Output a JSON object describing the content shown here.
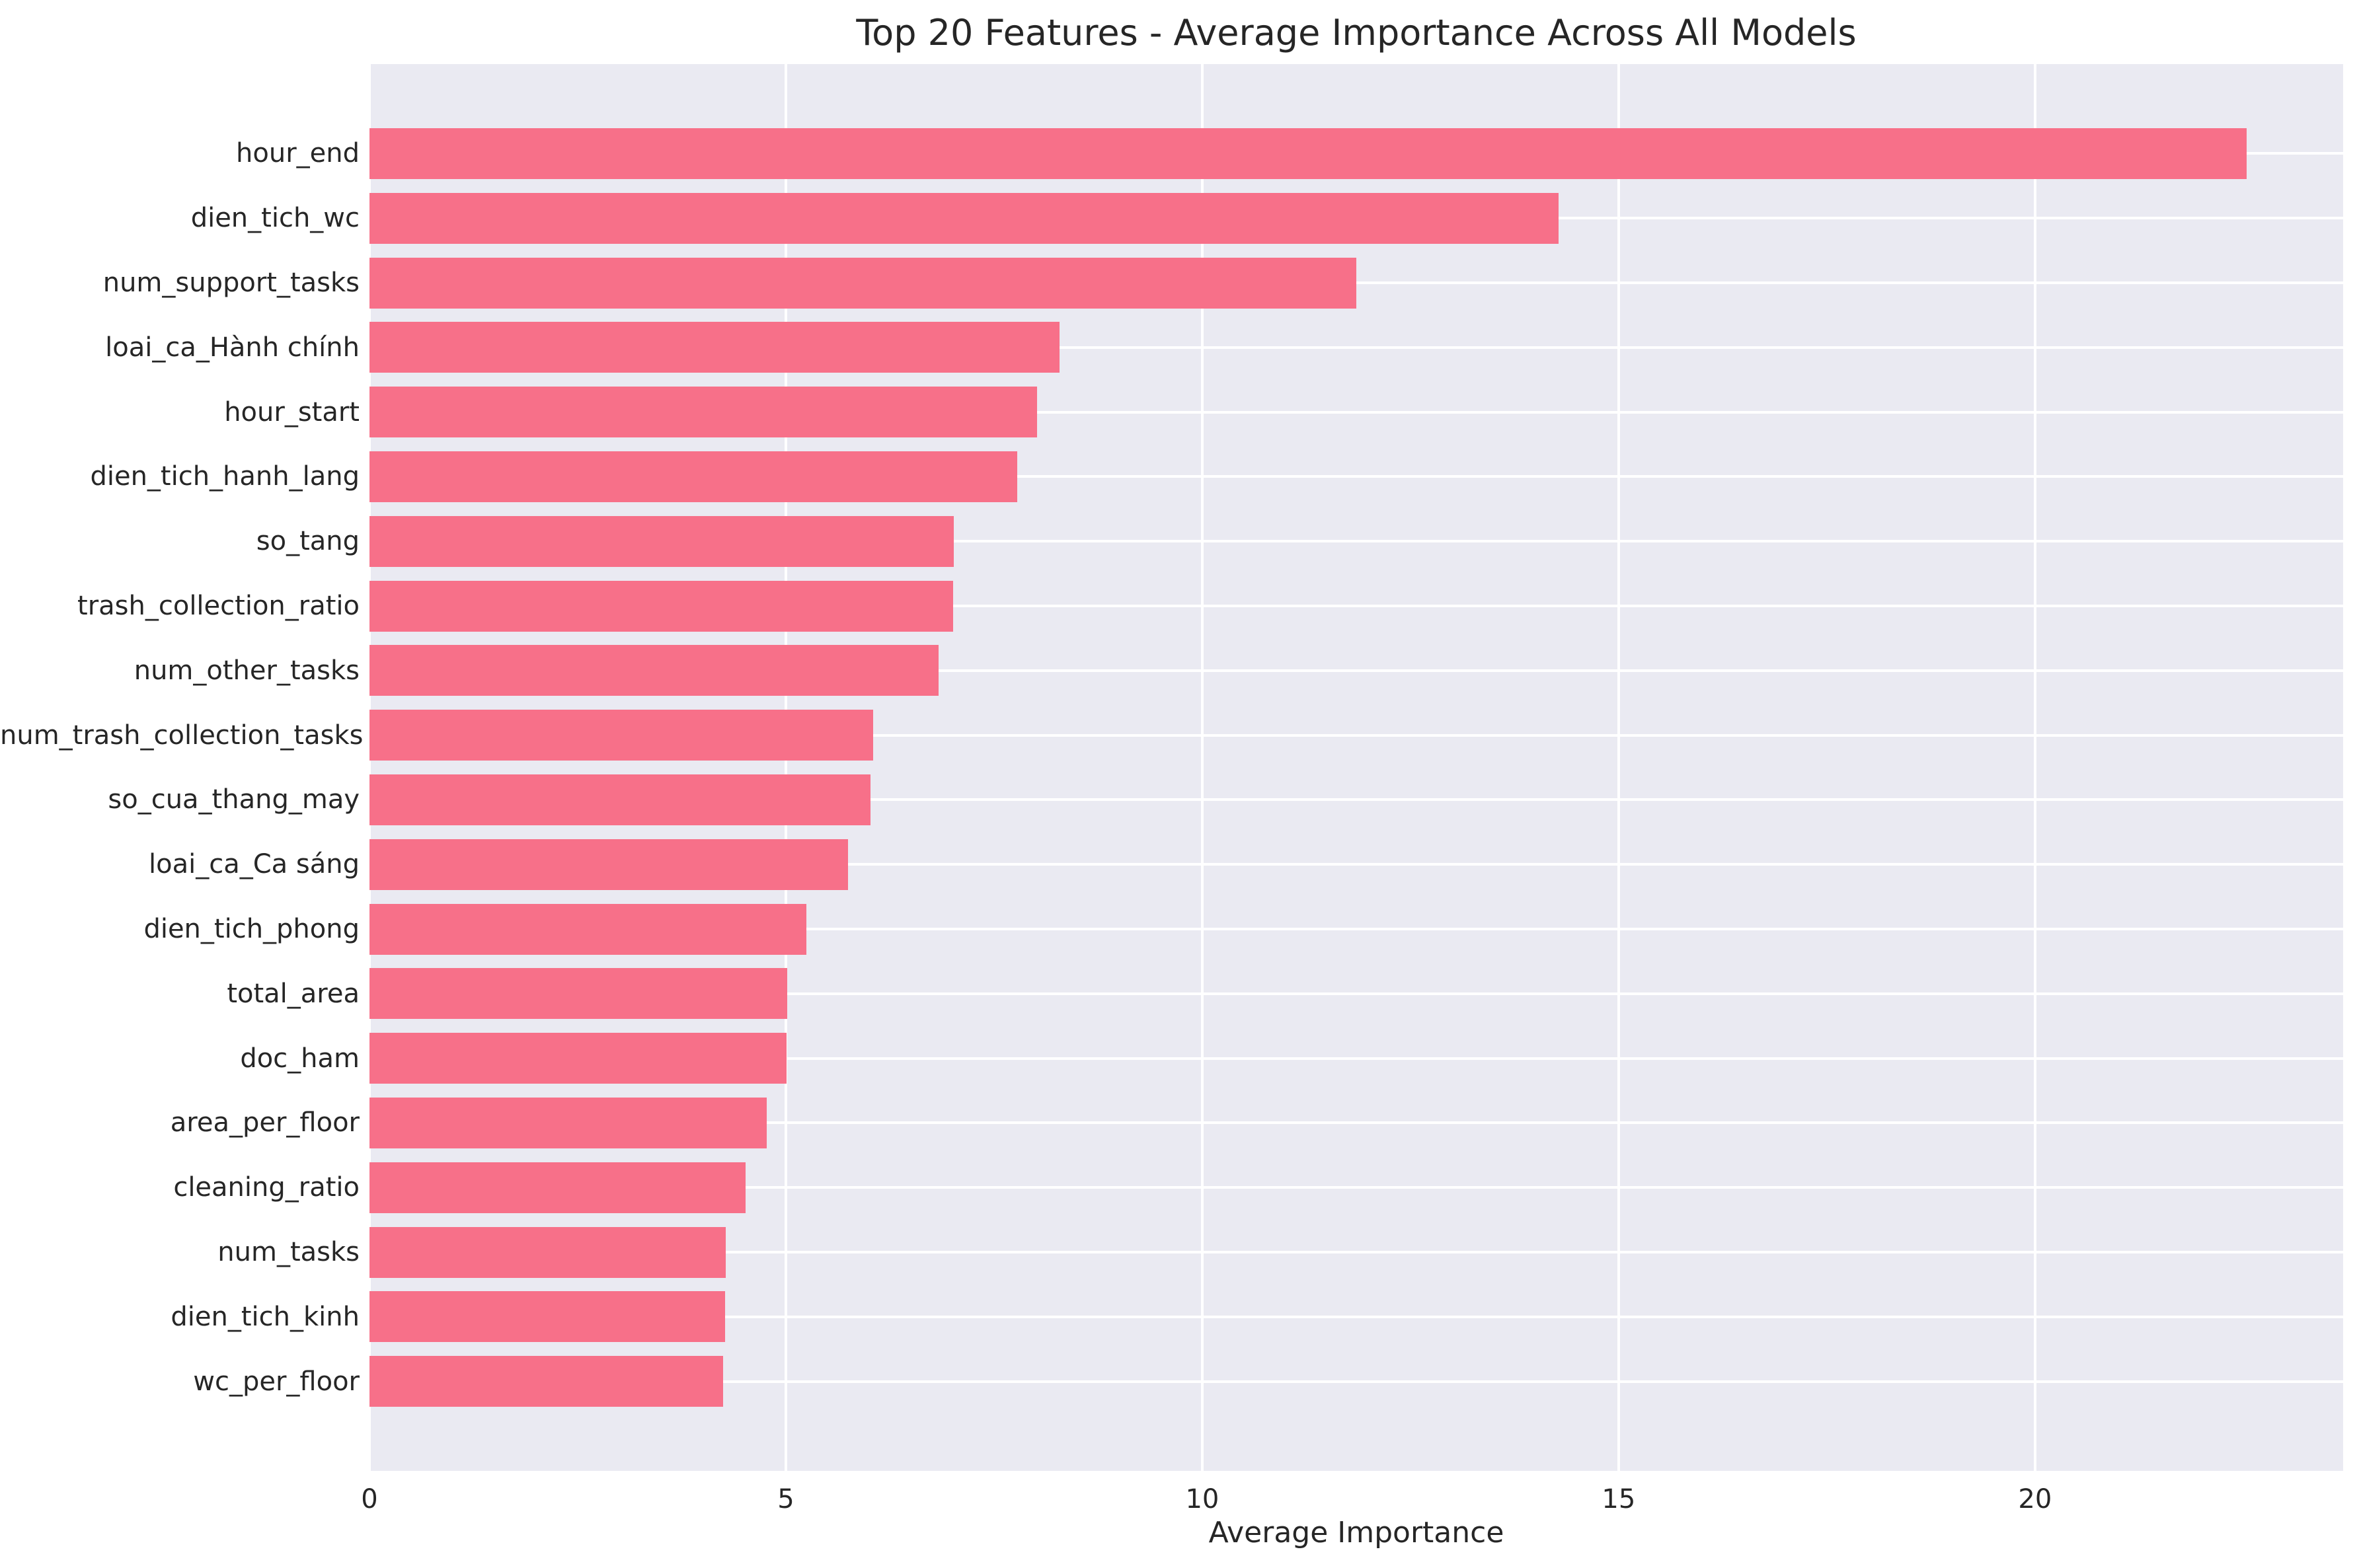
{
  "chart_data": {
    "type": "bar",
    "orientation": "horizontal",
    "title": "Top 20 Features - Average Importance Across All Models",
    "xlabel": "Average Importance",
    "ylabel": "",
    "categories": [
      "hour_end",
      "dien_tich_wc",
      "num_support_tasks",
      "loai_ca_Hành chính",
      "hour_start",
      "dien_tich_hanh_lang",
      "so_tang",
      "trash_collection_ratio",
      "num_other_tasks",
      "num_trash_collection_tasks",
      "so_cua_thang_may",
      "loai_ca_Ca sáng",
      "dien_tich_phong",
      "total_area",
      "doc_ham",
      "area_per_floor",
      "cleaning_ratio",
      "num_tasks",
      "dien_tich_kinh",
      "wc_per_floor"
    ],
    "values": [
      22.54,
      14.28,
      11.85,
      8.29,
      8.02,
      7.78,
      7.02,
      7.01,
      6.83,
      6.05,
      6.02,
      5.75,
      5.25,
      5.02,
      5.01,
      4.77,
      4.52,
      4.28,
      4.27,
      4.25
    ],
    "xticks": [
      0,
      5,
      10,
      15,
      20
    ],
    "xlim": [
      0,
      23.7
    ],
    "grid": true,
    "legend": false,
    "colors": {
      "bar": "#f77089",
      "plot_background": "#eaeaf2",
      "gridline": "#ffffff",
      "text": "#262626"
    }
  }
}
